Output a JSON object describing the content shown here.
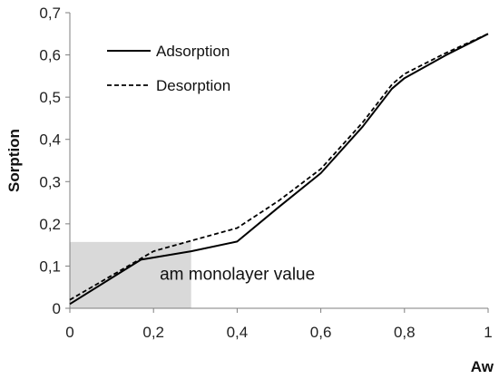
{
  "chart_data": {
    "type": "line",
    "xlabel": "Aw",
    "ylabel": "Sorption",
    "xlim": [
      0,
      1
    ],
    "ylim": [
      0,
      0.7
    ],
    "x_ticks": [
      "0",
      "0,2",
      "0,4",
      "0,6",
      "0,8",
      "1"
    ],
    "y_ticks": [
      "0",
      "0,1",
      "0,2",
      "0,3",
      "0,4",
      "0,5",
      "0,6",
      "0,7"
    ],
    "grid": false,
    "legend_position": "top-left",
    "series": [
      {
        "name": "Adsorption",
        "line_style": "solid",
        "color": "#000000",
        "x": [
          0,
          0.17,
          0.29,
          0.4,
          0.5,
          0.6,
          0.7,
          0.77,
          0.8,
          0.9,
          1.0
        ],
        "y": [
          0.01,
          0.115,
          0.135,
          0.158,
          0.24,
          0.32,
          0.43,
          0.52,
          0.545,
          0.6,
          0.65
        ]
      },
      {
        "name": "Desorption",
        "line_style": "dashed",
        "color": "#000000",
        "x": [
          0,
          0.2,
          0.29,
          0.4,
          0.5,
          0.6,
          0.7,
          0.77,
          0.8,
          0.9,
          1.0
        ],
        "y": [
          0.02,
          0.135,
          0.16,
          0.19,
          0.255,
          0.33,
          0.44,
          0.53,
          0.555,
          0.605,
          0.65
        ]
      }
    ],
    "highlight_region": {
      "x": [
        0,
        0.29
      ],
      "y": [
        0,
        0.157
      ],
      "color": "#d9d9d9"
    },
    "annotation": {
      "text": "am  monolayer value",
      "x": 0.215,
      "y": 0.068
    }
  }
}
